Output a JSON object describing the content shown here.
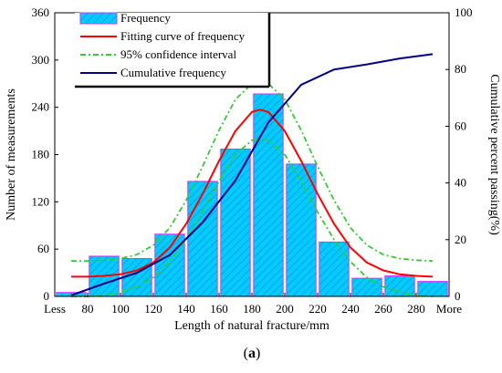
{
  "caption": {
    "prefix": "(",
    "letter": "a",
    "suffix": ")"
  },
  "chart_data": {
    "type": "bar",
    "xlabel": "Length of natural fracture/mm",
    "ylabel": "Number of measurements",
    "y2label": "Cumulative percent passing(%)",
    "x_tick_labels": [
      "Less",
      "80",
      "100",
      "120",
      "140",
      "160",
      "180",
      "200",
      "220",
      "240",
      "260",
      "280",
      "More"
    ],
    "xlim": [
      60,
      300
    ],
    "x_ticks": [
      60,
      80,
      100,
      120,
      140,
      160,
      180,
      200,
      220,
      240,
      260,
      280,
      300
    ],
    "ylim": [
      0,
      360
    ],
    "y_ticks": [
      0,
      60,
      120,
      180,
      240,
      300,
      360
    ],
    "y2lim": [
      0,
      100
    ],
    "y2_ticks": [
      0,
      20,
      40,
      60,
      80,
      100
    ],
    "legend_position": "top-left",
    "colors": {
      "bar_fill": "#00ccff",
      "bar_edge": "#cc33ff",
      "fit": "#ff0000",
      "ci": "#33cc33",
      "cumulative": "#000080"
    },
    "series": [
      {
        "name": "Frequency",
        "type": "bar",
        "x": [
          70,
          90,
          110,
          130,
          150,
          170,
          190,
          210,
          230,
          250,
          270,
          290
        ],
        "values": [
          5,
          51,
          48,
          79,
          146,
          187,
          257,
          168,
          69,
          23,
          26,
          19
        ]
      },
      {
        "name": "Fitting curve of frequency",
        "type": "line",
        "x": [
          70,
          80,
          90,
          100,
          110,
          120,
          130,
          140,
          150,
          160,
          170,
          180,
          185,
          190,
          200,
          210,
          220,
          230,
          240,
          250,
          260,
          270,
          280,
          290
        ],
        "values": [
          25,
          25,
          26,
          28,
          33,
          43,
          62,
          92,
          130,
          172,
          210,
          234,
          237,
          234,
          210,
          172,
          130,
          92,
          62,
          43,
          33,
          28,
          26,
          25
        ]
      },
      {
        "name": "95% confidence interval",
        "type": "line",
        "x": [
          70,
          80,
          90,
          100,
          110,
          120,
          130,
          140,
          150,
          160,
          170,
          180,
          185,
          190,
          200,
          210,
          220,
          230,
          240,
          250,
          260,
          270,
          280,
          290
        ],
        "values": [
          45,
          45,
          46,
          48,
          53,
          65,
          87,
          122,
          165,
          211,
          250,
          270,
          272,
          270,
          250,
          211,
          165,
          122,
          87,
          65,
          53,
          48,
          46,
          45
        ]
      },
      {
        "name": "95% confidence interval",
        "type": "line",
        "x": [
          70,
          80,
          90,
          100,
          110,
          120,
          130,
          140,
          150,
          160,
          170,
          180,
          185,
          190,
          200,
          210,
          220,
          230,
          240,
          250,
          260,
          270,
          280,
          290
        ],
        "values": [
          0,
          0,
          2,
          5,
          12,
          24,
          44,
          72,
          107,
          146,
          180,
          198,
          200,
          198,
          180,
          146,
          107,
          72,
          44,
          24,
          12,
          5,
          2,
          0
        ]
      },
      {
        "name": "Cumulative frequency",
        "type": "line",
        "axis": "right",
        "x": [
          70,
          90,
          110,
          130,
          150,
          170,
          190,
          210,
          230,
          250,
          270,
          290
        ],
        "values": [
          0.4,
          4.5,
          8.3,
          14.6,
          26.1,
          40.9,
          61.3,
          74.6,
          80.0,
          81.8,
          83.9,
          85.4
        ]
      }
    ]
  }
}
